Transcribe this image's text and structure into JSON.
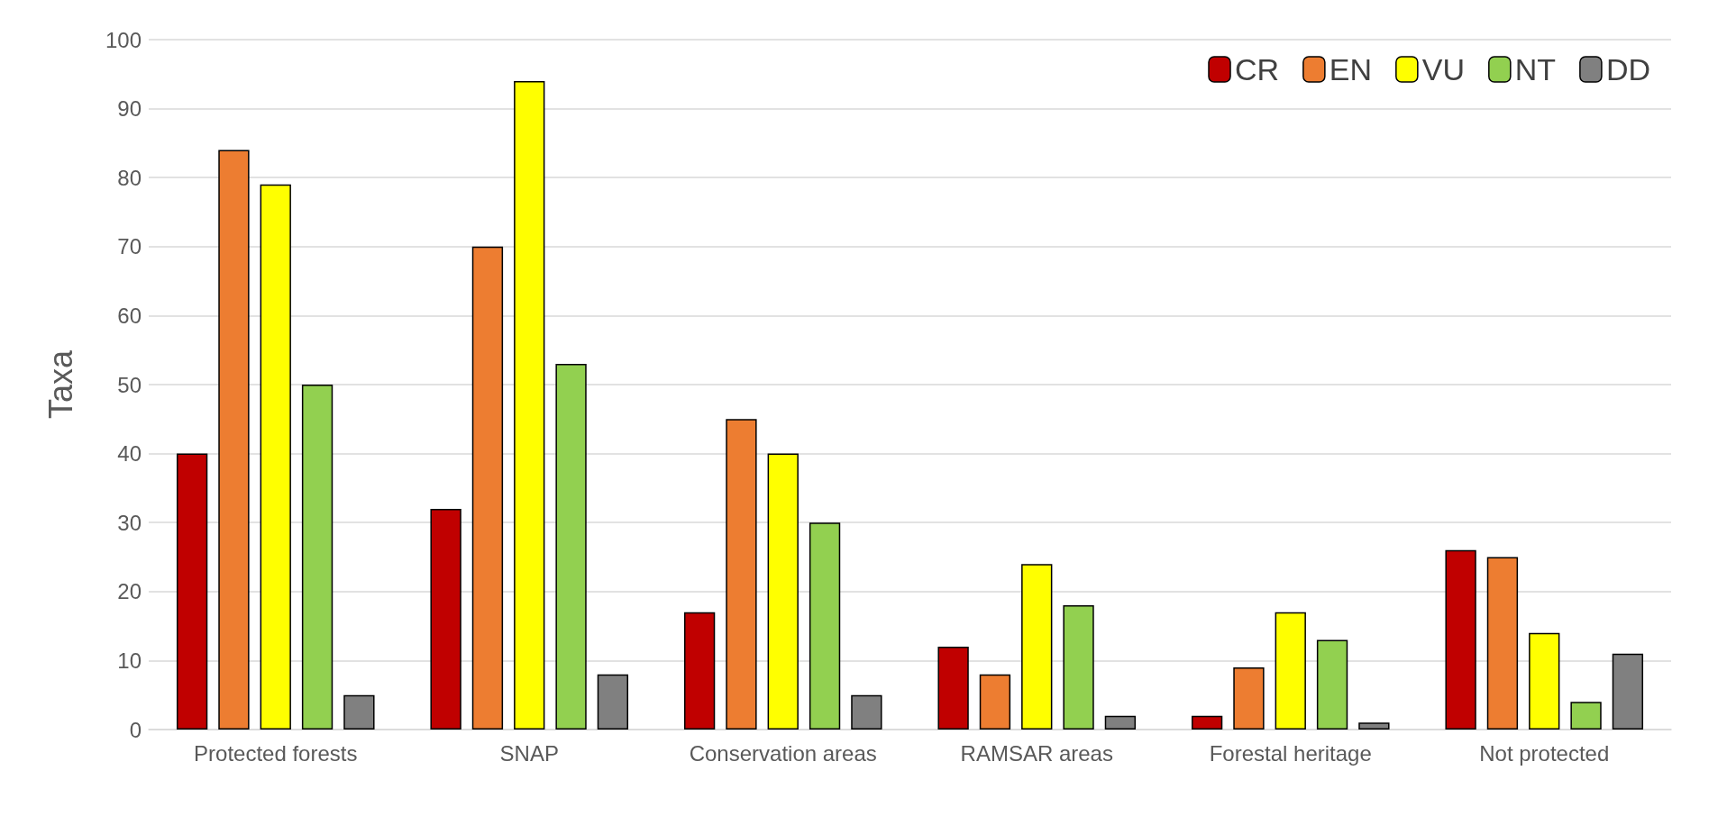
{
  "chart_data": {
    "type": "bar",
    "ylabel": "Taxa",
    "categories": [
      "Protected forests",
      "SNAP",
      "Conservation areas",
      "RAMSAR areas",
      "Forestal heritage",
      "Not protected"
    ],
    "series": [
      {
        "name": "CR",
        "color": "#c00000",
        "values": [
          40,
          32,
          17,
          12,
          2,
          26
        ]
      },
      {
        "name": "EN",
        "color": "#ed7d31",
        "values": [
          84,
          70,
          45,
          8,
          9,
          25
        ]
      },
      {
        "name": "VU",
        "color": "#ffff00",
        "values": [
          79,
          94,
          40,
          24,
          17,
          14
        ]
      },
      {
        "name": "NT",
        "color": "#92d050",
        "values": [
          50,
          53,
          30,
          18,
          13,
          4
        ]
      },
      {
        "name": "DD",
        "color": "#808080",
        "values": [
          5,
          8,
          5,
          2,
          1,
          11
        ]
      }
    ],
    "ylim": [
      0,
      100
    ],
    "yticks": [
      0,
      10,
      20,
      30,
      40,
      50,
      60,
      70,
      80,
      90,
      100
    ],
    "grid": "y",
    "legend": "top right"
  }
}
